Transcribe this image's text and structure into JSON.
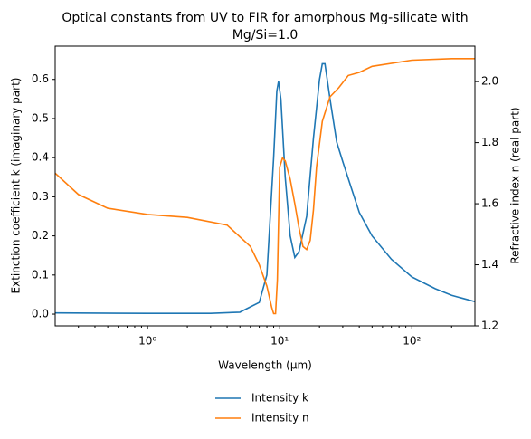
{
  "chart_data": {
    "type": "line",
    "title": [
      "Optical constants from UV to FIR for amorphous Mg-silicate with",
      "Mg/Si=1.0"
    ],
    "xlabel": "Wavelength (μm)",
    "ylabel": "Extinction coefficient k (imaginary part)",
    "y2label": "Refractive index n (real part)",
    "xscale": "log",
    "xlim": [
      0.2,
      300
    ],
    "xticks": [
      {
        "value": 1,
        "label": "10⁰"
      },
      {
        "value": 10,
        "label": "10¹"
      },
      {
        "value": 100,
        "label": "10²"
      }
    ],
    "ylim": [
      -0.03,
      0.685
    ],
    "yticks": [
      {
        "value": 0,
        "label": "0.0"
      },
      0.1,
      0.2,
      0.3,
      0.4,
      0.5,
      0.6
    ],
    "y2lim": [
      1.2,
      2.116
    ],
    "y2ticks": [
      1.2,
      1.4,
      1.6,
      1.8,
      {
        "value": 2,
        "label": "2.0"
      }
    ],
    "legend": "lower center",
    "series": [
      {
        "name": "Intensity k",
        "color": "#1f77b4",
        "x": [
          0.2,
          1,
          3,
          5,
          7,
          8,
          9,
          9.5,
          9.8,
          10.2,
          11,
          12,
          13,
          14,
          16,
          18,
          20,
          21,
          22,
          24,
          27,
          30,
          35,
          40,
          50,
          70,
          100,
          150,
          200,
          300
        ],
        "values": [
          0.003,
          0.002,
          0.002,
          0.005,
          0.03,
          0.1,
          0.4,
          0.57,
          0.595,
          0.55,
          0.35,
          0.2,
          0.145,
          0.16,
          0.25,
          0.45,
          0.6,
          0.64,
          0.64,
          0.55,
          0.44,
          0.39,
          0.32,
          0.26,
          0.2,
          0.14,
          0.095,
          0.065,
          0.048,
          0.032
        ]
      },
      {
        "name": "Intensity n",
        "color": "#ff7f0e",
        "axis": "y2",
        "x": [
          0.2,
          0.3,
          0.5,
          1,
          2,
          4,
          6,
          7,
          8,
          8.7,
          9,
          9.3,
          9.6,
          10,
          10.5,
          11,
          12,
          13,
          14,
          15,
          16,
          17,
          18,
          19,
          21,
          24,
          28,
          33,
          40,
          50,
          100,
          200,
          300
        ],
        "values": [
          1.7,
          1.63,
          1.585,
          1.565,
          1.555,
          1.53,
          1.46,
          1.4,
          1.33,
          1.26,
          1.24,
          1.24,
          1.35,
          1.72,
          1.75,
          1.74,
          1.68,
          1.6,
          1.52,
          1.46,
          1.45,
          1.48,
          1.58,
          1.72,
          1.87,
          1.95,
          1.98,
          2.02,
          2.03,
          2.05,
          2.07,
          2.075,
          2.075
        ]
      }
    ]
  }
}
